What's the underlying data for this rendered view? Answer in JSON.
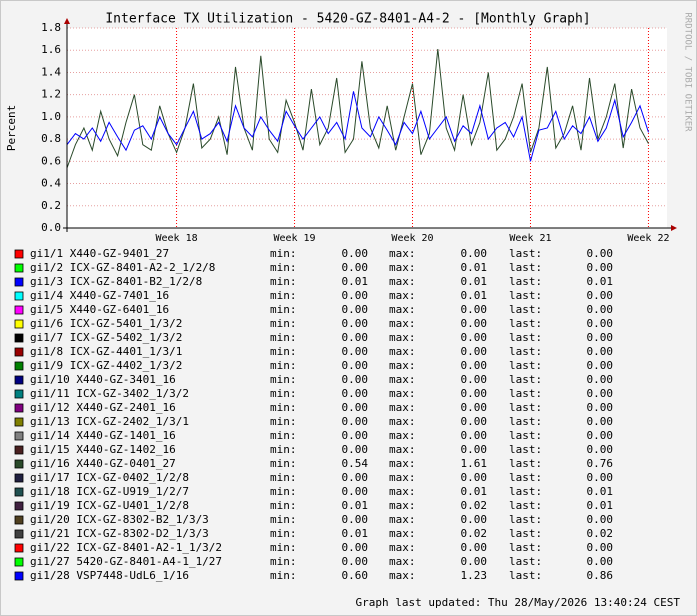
{
  "chart_data": {
    "type": "line",
    "title": "Interface TX Utilization - 5420-GZ-8401-A4-2 - [Monthly Graph]",
    "y_label": "Percent",
    "side_text": "RRDTOOL / TOBI OETIKER",
    "footer": "Graph last updated: Thu 28/May/2026 13:40:24 CEST",
    "stat_labels": [
      "min:",
      "max:",
      "last:"
    ],
    "ylim": [
      0,
      1.8
    ],
    "yticks": [
      {
        "value": 0,
        "label": "0.0"
      },
      {
        "value": 0.2,
        "label": "0.2"
      },
      {
        "value": 0.4,
        "label": "0.4"
      },
      {
        "value": 0.6,
        "label": "0.6"
      },
      {
        "value": 0.8,
        "label": "0.8"
      },
      {
        "value": 1,
        "label": "1.0"
      },
      {
        "value": 1.2,
        "label": "1.2"
      },
      {
        "value": 1.4,
        "label": "1.4"
      },
      {
        "value": 1.6,
        "label": "1.6"
      },
      {
        "value": 1.8,
        "label": "1.8"
      }
    ],
    "xlim": [
      0,
      35.6
    ],
    "xticks": [
      {
        "value": 6.5,
        "label": "Week 18"
      },
      {
        "value": 13.5,
        "label": "Week 19"
      },
      {
        "value": 20.5,
        "label": "Week 20"
      },
      {
        "value": 27.5,
        "label": "Week 21"
      },
      {
        "value": 34.5,
        "label": "Week 22"
      }
    ],
    "grid": true,
    "x": [
      0,
      0.5,
      1,
      1.5,
      2,
      2.5,
      3,
      3.5,
      4,
      4.5,
      5,
      5.5,
      6,
      6.5,
      7,
      7.5,
      8,
      8.5,
      9,
      9.5,
      10,
      10.5,
      11,
      11.5,
      12,
      12.5,
      13,
      13.5,
      14,
      14.5,
      15,
      15.5,
      16,
      16.5,
      17,
      17.5,
      18,
      18.5,
      19,
      19.5,
      20,
      20.5,
      21,
      21.5,
      22,
      22.5,
      23,
      23.5,
      24,
      24.5,
      25,
      25.5,
      26,
      26.5,
      27,
      27.5,
      28,
      28.5,
      29,
      29.5,
      30,
      30.5,
      31,
      31.5,
      32,
      32.5,
      33,
      33.5,
      34,
      34.5
    ],
    "series": [
      {
        "name": "gi1/1 X440-GZ-9401_27",
        "color": "#ff0000",
        "min": "0.00",
        "max": "0.00",
        "last": "0.00"
      },
      {
        "name": "gi1/2 ICX-GZ-8401-A2-2_1/2/8",
        "color": "#00ff00",
        "min": "0.00",
        "max": "0.01",
        "last": "0.00"
      },
      {
        "name": "gi1/3 ICX-GZ-8401-B2_1/2/8",
        "color": "#0000ff",
        "min": "0.01",
        "max": "0.01",
        "last": "0.01"
      },
      {
        "name": "gi1/4 X440-GZ-7401_16",
        "color": "#00ffff",
        "min": "0.00",
        "max": "0.01",
        "last": "0.00"
      },
      {
        "name": "gi1/5 X440-GZ-6401_16",
        "color": "#ff00ff",
        "min": "0.00",
        "max": "0.00",
        "last": "0.00"
      },
      {
        "name": "gi1/6 ICX-GZ-5401_1/3/2",
        "color": "#ffff00",
        "min": "0.00",
        "max": "0.00",
        "last": "0.00"
      },
      {
        "name": "gi1/7 ICX-GZ-5402_1/3/2",
        "color": "#000000",
        "min": "0.00",
        "max": "0.00",
        "last": "0.00"
      },
      {
        "name": "gi1/8 ICX-GZ-4401_1/3/1",
        "color": "#990000",
        "min": "0.00",
        "max": "0.00",
        "last": "0.00"
      },
      {
        "name": "gi1/9 ICX-GZ-4402_1/3/2",
        "color": "#008000",
        "min": "0.00",
        "max": "0.00",
        "last": "0.00"
      },
      {
        "name": "gi1/10 X440-GZ-3401_16",
        "color": "#000080",
        "min": "0.00",
        "max": "0.00",
        "last": "0.00"
      },
      {
        "name": "gi1/11 ICX-GZ-3402_1/3/2",
        "color": "#008080",
        "min": "0.00",
        "max": "0.00",
        "last": "0.00"
      },
      {
        "name": "gi1/12 X440-GZ-2401_16",
        "color": "#800080",
        "min": "0.00",
        "max": "0.00",
        "last": "0.00"
      },
      {
        "name": "gi1/13 ICX-GZ-2402_1/3/1",
        "color": "#808000",
        "min": "0.00",
        "max": "0.00",
        "last": "0.00"
      },
      {
        "name": "gi1/14 X440-GZ-1401_16",
        "color": "#808080",
        "min": "0.00",
        "max": "0.00",
        "last": "0.00"
      },
      {
        "name": "gi1/15 X440-GZ-1402_16",
        "color": "#4a2020",
        "min": "0.00",
        "max": "0.00",
        "last": "0.00"
      },
      {
        "name": "gi1/16 X440-GZ-0401_27",
        "color": "#2a4a2a",
        "min": "0.54",
        "max": "1.61",
        "last": "0.76",
        "values": [
          0.54,
          0.75,
          0.9,
          0.7,
          1.05,
          0.8,
          0.65,
          0.95,
          1.2,
          0.75,
          0.7,
          1.1,
          0.85,
          0.68,
          0.9,
          1.3,
          0.72,
          0.8,
          1.0,
          0.66,
          1.45,
          0.9,
          0.7,
          1.55,
          0.8,
          0.68,
          1.15,
          0.95,
          0.7,
          1.25,
          0.75,
          0.9,
          1.35,
          0.68,
          0.8,
          1.5,
          0.9,
          0.72,
          1.1,
          0.7,
          1.0,
          1.3,
          0.66,
          0.85,
          1.61,
          0.9,
          0.7,
          1.2,
          0.75,
          0.95,
          1.4,
          0.7,
          0.8,
          1.0,
          1.3,
          0.68,
          0.9,
          1.45,
          0.72,
          0.85,
          1.1,
          0.7,
          1.35,
          0.8,
          1.0,
          1.3,
          0.72,
          1.25,
          0.9,
          0.76
        ]
      },
      {
        "name": "gi1/17 ICX-GZ-0402_1/2/8",
        "color": "#202040",
        "min": "0.00",
        "max": "0.00",
        "last": "0.00"
      },
      {
        "name": "gi1/18 ICX-GZ-U919_1/2/7",
        "color": "#205050",
        "min": "0.00",
        "max": "0.01",
        "last": "0.01"
      },
      {
        "name": "gi1/19 ICX-GZ-U401_1/2/8",
        "color": "#402040",
        "min": "0.01",
        "max": "0.02",
        "last": "0.01"
      },
      {
        "name": "gi1/20 ICX-GZ-8302-B2_1/3/3",
        "color": "#504020",
        "min": "0.00",
        "max": "0.00",
        "last": "0.00"
      },
      {
        "name": "gi1/21 ICX-GZ-8302-D2_1/3/3",
        "color": "#404040",
        "min": "0.01",
        "max": "0.02",
        "last": "0.02"
      },
      {
        "name": "gi1/22 ICX-GZ-8401-A2-1_1/3/2",
        "color": "#ff0000",
        "min": "0.00",
        "max": "0.00",
        "last": "0.00"
      },
      {
        "name": "gi1/27 5420-GZ-8401-A4-1_1/27",
        "color": "#00ff00",
        "min": "0.00",
        "max": "0.00",
        "last": "0.00"
      },
      {
        "name": "gi1/28 VSP7448-UdL6_1/16",
        "color": "#0000ff",
        "min": "0.60",
        "max": "1.23",
        "last": "0.86",
        "values": [
          0.75,
          0.85,
          0.8,
          0.9,
          0.78,
          0.95,
          0.82,
          0.7,
          0.88,
          0.92,
          0.8,
          1.0,
          0.85,
          0.75,
          0.9,
          1.05,
          0.8,
          0.85,
          0.95,
          0.78,
          1.1,
          0.9,
          0.82,
          1.0,
          0.88,
          0.78,
          1.05,
          0.92,
          0.8,
          0.9,
          1.0,
          0.85,
          0.95,
          0.8,
          1.23,
          0.9,
          0.82,
          1.0,
          0.88,
          0.75,
          0.95,
          0.85,
          1.05,
          0.8,
          0.9,
          1.0,
          0.78,
          0.92,
          0.85,
          1.1,
          0.8,
          0.9,
          0.95,
          0.82,
          1.0,
          0.6,
          0.88,
          0.9,
          1.05,
          0.8,
          0.92,
          0.85,
          1.0,
          0.78,
          0.9,
          1.15,
          0.82,
          0.95,
          1.1,
          0.86
        ]
      }
    ]
  }
}
